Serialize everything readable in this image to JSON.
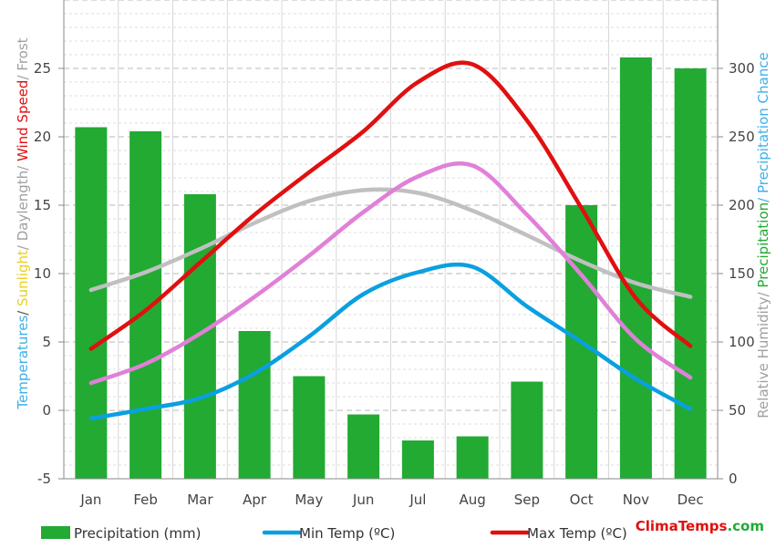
{
  "chart_data": {
    "type": "bar+line",
    "categories": [
      "Jan",
      "Feb",
      "Mar",
      "Apr",
      "May",
      "Jun",
      "Jul",
      "Aug",
      "Sep",
      "Oct",
      "Nov",
      "Dec"
    ],
    "y_left": {
      "ticks": [
        "-5",
        "0",
        "5",
        "10",
        "15",
        "20",
        "25"
      ],
      "range": [
        -5,
        30
      ]
    },
    "y_right": {
      "ticks": [
        "0",
        "50",
        "100",
        "150",
        "200",
        "250",
        "300"
      ],
      "range": [
        0,
        350
      ]
    },
    "precipitation": {
      "name": "Precipitation (mm)",
      "color": "#22aa33",
      "values": [
        257,
        254,
        208,
        108,
        75,
        47,
        28,
        31,
        71,
        200,
        308,
        300
      ]
    },
    "min_temp": {
      "name": "Min Temp (ºC)",
      "color": "#0aa0e0",
      "values": [
        -0.6,
        0.1,
        0.9,
        2.7,
        5.4,
        8.5,
        10.1,
        10.5,
        7.6,
        5.0,
        2.3,
        0.1
      ]
    },
    "max_temp": {
      "name": "Max Temp (ºC)",
      "color": "#e01010",
      "values": [
        4.5,
        7.3,
        10.8,
        14.3,
        17.4,
        20.4,
        24.0,
        25.3,
        21.2,
        14.8,
        8.2,
        4.7
      ]
    },
    "mean_temp": {
      "color": "#e080d8",
      "values": [
        2.0,
        3.4,
        5.6,
        8.3,
        11.3,
        14.5,
        17.1,
        17.9,
        14.3,
        9.9,
        5.2,
        2.4
      ]
    },
    "daylength": {
      "color": "#c0c0c0",
      "values": [
        8.8,
        10.1,
        11.8,
        13.7,
        15.3,
        16.1,
        15.9,
        14.6,
        12.8,
        10.9,
        9.3,
        8.3
      ]
    },
    "ylabel_left": [
      {
        "text": "Temperatures",
        "color": "#3cb0e8"
      },
      {
        "text": "/ ",
        "color": "#555555"
      },
      {
        "text": "Sunlight",
        "color": "#e8d020"
      },
      {
        "text": "/ Daylength/ ",
        "color": "#a0a0a0"
      },
      {
        "text": "Wind Speed",
        "color": "#e01010"
      },
      {
        "text": "/ Frost",
        "color": "#a0a0a0"
      }
    ],
    "ylabel_right": [
      {
        "text": "Relative Humidity/ ",
        "color": "#a0a0a0"
      },
      {
        "text": "Precipitation",
        "color": "#22aa33"
      },
      {
        "text": "/ Precipitation Chance",
        "color": "#3cb0e8"
      }
    ],
    "legend": [
      {
        "label": "Precipitation (mm)",
        "kind": "bar",
        "color": "#22aa33"
      },
      {
        "label": "Min Temp (ºC)",
        "kind": "line",
        "color": "#0aa0e0"
      },
      {
        "label": "Max Temp (ºC)",
        "kind": "line",
        "color": "#e01010"
      }
    ],
    "brand": {
      "part1": "ClimaTemps",
      "part2": ".com",
      "color1": "#e01010",
      "color2": "#22aa33"
    }
  }
}
